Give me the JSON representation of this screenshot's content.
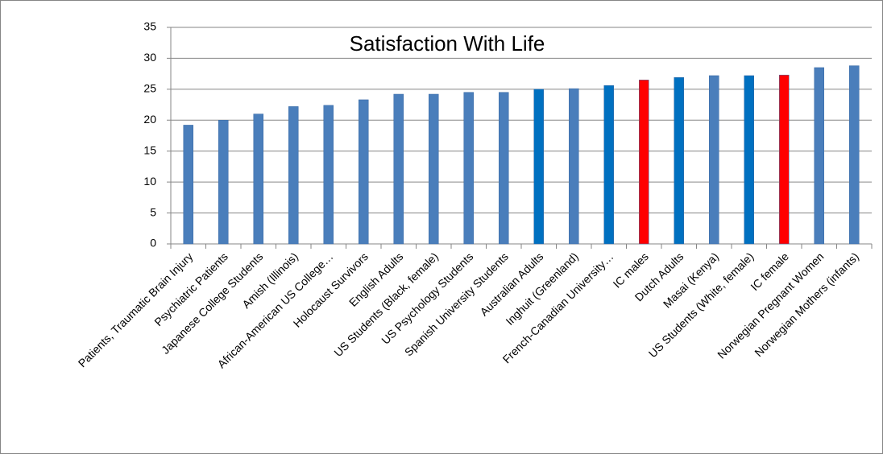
{
  "chart_data": {
    "type": "bar",
    "title": "Satisfaction With Life",
    "categories": [
      "Patients, Traumatic Brain Injury",
      "Psychiatric Patients",
      "Japanese College Students",
      "Amish (Illinois)",
      "African-American US College…",
      "Holocaust Survivors",
      "English Adults",
      "US Students (Black, female)",
      "US Psychology Students",
      "Spanish University Students",
      "Australian Adults",
      "Inghuit (Greenland)",
      "French-Canadian University…",
      "IC males",
      "Dutch Adults",
      "Masai (Kenya)",
      "US Students (White, female)",
      "IC female",
      "Norwegian Pregnant Women",
      "Norwegian Mothers (infants)"
    ],
    "values": [
      19.2,
      20,
      21,
      22.2,
      22.4,
      23.3,
      24.2,
      24.2,
      24.5,
      24.5,
      25,
      25.1,
      25.6,
      26.5,
      26.9,
      27.2,
      27.2,
      27.3,
      28.5,
      28.8
    ],
    "colors": [
      "#4a7ebb",
      "#4a7ebb",
      "#4a7ebb",
      "#4a7ebb",
      "#4a7ebb",
      "#4a7ebb",
      "#4a7ebb",
      "#4a7ebb",
      "#4a7ebb",
      "#4a7ebb",
      "#0070c0",
      "#4a7ebb",
      "#0070c0",
      "#ff0000",
      "#0070c0",
      "#4a7ebb",
      "#0070c0",
      "#ff0000",
      "#4a7ebb",
      "#4a7ebb"
    ],
    "ylim": [
      0,
      35
    ],
    "yticks": [
      0,
      5,
      10,
      15,
      20,
      25,
      30,
      35
    ],
    "grid": true
  }
}
